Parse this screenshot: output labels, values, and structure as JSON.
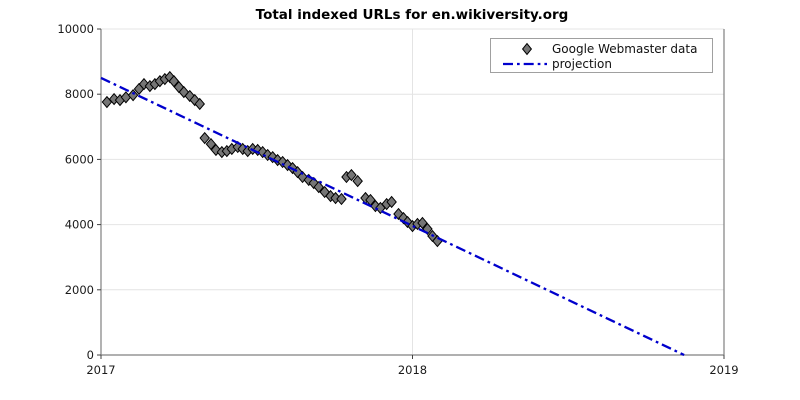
{
  "chart_data": {
    "type": "scatter",
    "title": "Total indexed URLs for en.wikiversity.org",
    "xlabel": "",
    "ylabel": "",
    "xlim": [
      2017,
      2019
    ],
    "ylim": [
      0,
      10000
    ],
    "x_ticks": [
      2017,
      2018,
      2019
    ],
    "y_ticks": [
      0,
      2000,
      4000,
      6000,
      8000,
      10000
    ],
    "grid": true,
    "legend_position": "upper-center-right",
    "colors": {
      "marker_fill": "#757575",
      "marker_edge": "#000000",
      "projection_line": "#0000cd",
      "grid": "#e4e4e4",
      "spine": "#808080",
      "tick": "#404040",
      "legend_border": "#a0a0a0",
      "background": "#ffffff"
    },
    "series": [
      {
        "name": "Google Webmaster data",
        "kind": "scatter",
        "marker": "diamond",
        "points": [
          [
            2017.019,
            7760
          ],
          [
            2017.042,
            7850
          ],
          [
            2017.061,
            7820
          ],
          [
            2017.08,
            7905
          ],
          [
            2017.103,
            7970
          ],
          [
            2017.122,
            8160
          ],
          [
            2017.138,
            8310
          ],
          [
            2017.157,
            8250
          ],
          [
            2017.173,
            8310
          ],
          [
            2017.189,
            8400
          ],
          [
            2017.205,
            8465
          ],
          [
            2017.221,
            8525
          ],
          [
            2017.234,
            8400
          ],
          [
            2017.25,
            8220
          ],
          [
            2017.266,
            8065
          ],
          [
            2017.285,
            7945
          ],
          [
            2017.301,
            7820
          ],
          [
            2017.317,
            7700
          ],
          [
            2017.333,
            6655
          ],
          [
            2017.353,
            6470
          ],
          [
            2017.369,
            6290
          ],
          [
            2017.388,
            6225
          ],
          [
            2017.404,
            6255
          ],
          [
            2017.42,
            6320
          ],
          [
            2017.439,
            6380
          ],
          [
            2017.455,
            6320
          ],
          [
            2017.471,
            6255
          ],
          [
            2017.487,
            6320
          ],
          [
            2017.503,
            6290
          ],
          [
            2017.519,
            6225
          ],
          [
            2017.535,
            6135
          ],
          [
            2017.551,
            6070
          ],
          [
            2017.567,
            5980
          ],
          [
            2017.583,
            5920
          ],
          [
            2017.599,
            5825
          ],
          [
            2017.615,
            5735
          ],
          [
            2017.631,
            5610
          ],
          [
            2017.647,
            5460
          ],
          [
            2017.667,
            5370
          ],
          [
            2017.683,
            5275
          ],
          [
            2017.699,
            5150
          ],
          [
            2017.718,
            5000
          ],
          [
            2017.737,
            4875
          ],
          [
            2017.753,
            4815
          ],
          [
            2017.772,
            4785
          ],
          [
            2017.788,
            5460
          ],
          [
            2017.804,
            5520
          ],
          [
            2017.824,
            5335
          ],
          [
            2017.849,
            4815
          ],
          [
            2017.865,
            4755
          ],
          [
            2017.881,
            4570
          ],
          [
            2017.897,
            4510
          ],
          [
            2017.917,
            4630
          ],
          [
            2017.933,
            4695
          ],
          [
            2017.955,
            4325
          ],
          [
            2017.971,
            4200
          ],
          [
            2017.984,
            4080
          ],
          [
            2018.0,
            3955
          ],
          [
            2018.016,
            4020
          ],
          [
            2018.032,
            4050
          ],
          [
            2018.048,
            3865
          ],
          [
            2018.064,
            3650
          ],
          [
            2018.08,
            3495
          ]
        ]
      },
      {
        "name": "projection",
        "kind": "line",
        "style": "dash-dot",
        "points": [
          [
            2017.0,
            8500
          ],
          [
            2018.872,
            0
          ]
        ]
      }
    ]
  }
}
